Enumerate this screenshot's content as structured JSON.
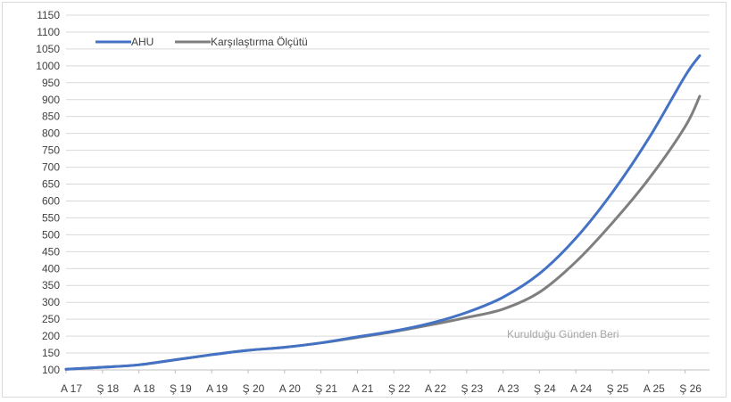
{
  "chart_data": {
    "type": "line",
    "title": "",
    "xlabel": "",
    "ylabel": "",
    "ylim": [
      100,
      1150
    ],
    "y_ticks": [
      100,
      150,
      200,
      250,
      300,
      350,
      400,
      450,
      500,
      550,
      600,
      650,
      700,
      750,
      800,
      850,
      900,
      950,
      1000,
      1050,
      1100,
      1150
    ],
    "x_tick_labels": [
      "A 17",
      "Ş 18",
      "A 18",
      "Ş 19",
      "A 19",
      "Ş 20",
      "A 20",
      "Ş 21",
      "A 21",
      "Ş 22",
      "A 22",
      "Ş 23",
      "A 23",
      "Ş 24",
      "A 24",
      "Ş 25",
      "A 25",
      "Ş 26"
    ],
    "grid": true,
    "legend_position": "top-left",
    "annotation": "Kurulduğu Günden Beri",
    "series": [
      {
        "name": "AHU",
        "color": "#4472c4",
        "values": [
          102,
          108,
          115,
          130,
          145,
          158,
          167,
          180,
          198,
          215,
          238,
          270,
          315,
          385,
          490,
          625,
          785,
          970,
          1030
        ]
      },
      {
        "name": "Karşılaştırma Ölçütü",
        "color": "#7f7f7f",
        "values": [
          102,
          108,
          115,
          130,
          145,
          158,
          167,
          180,
          196,
          213,
          233,
          255,
          280,
          330,
          420,
          535,
          665,
          820,
          910
        ]
      }
    ],
    "x_index": [
      0,
      1,
      2,
      3,
      4,
      5,
      6,
      7,
      8,
      9,
      10,
      11,
      12,
      13,
      14,
      15,
      16,
      17,
      17.4
    ]
  }
}
